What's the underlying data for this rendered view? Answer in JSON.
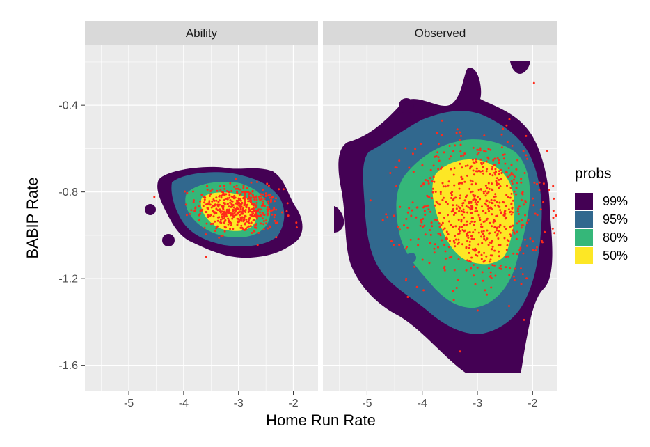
{
  "chart_data": {
    "type": "scatter",
    "subtype": "density-contour-with-points",
    "xlabel": "Home Run Rate",
    "ylabel": "BABIP Rate",
    "xlim": [
      -5.8,
      -1.55
    ],
    "ylim": [
      -1.72,
      -0.12
    ],
    "x_ticks": [
      -5,
      -4,
      -3,
      -2
    ],
    "y_ticks": [
      -0.4,
      -0.8,
      -1.2,
      -1.6
    ],
    "tick_labels": {
      "x": [
        "-5",
        "-4",
        "-3",
        "-2"
      ],
      "y": [
        "-0.4",
        "-0.8",
        "-1.2",
        "-1.6"
      ]
    },
    "grid": true,
    "legend": {
      "title": "probs",
      "position": "right",
      "entries": [
        {
          "label": "99%",
          "color": "#440154"
        },
        {
          "label": "95%",
          "color": "#31688E"
        },
        {
          "label": "80%",
          "color": "#35B779"
        },
        {
          "label": "50%",
          "color": "#FDE725"
        }
      ]
    },
    "point_color": "#FF2A1A",
    "panel_background": "#EBEBEB",
    "strip_background": "#D9D9D9",
    "panels": [
      {
        "label": "Ability",
        "points_approx_count": 500,
        "center": {
          "x": -3.0,
          "y": -0.88
        },
        "regions": [
          {
            "level": "99%",
            "x_range": [
              -4.45,
              -1.75
            ],
            "y_range": [
              -1.05,
              -0.69
            ]
          },
          {
            "level": "95%",
            "x_range": [
              -4.25,
              -2.0
            ],
            "y_range": [
              -1.0,
              -0.73
            ]
          },
          {
            "level": "80%",
            "x_range": [
              -3.8,
              -2.3
            ],
            "y_range": [
              -0.96,
              -0.76
            ]
          },
          {
            "level": "50%",
            "x_range": [
              -3.45,
              -2.55
            ],
            "y_range": [
              -0.94,
              -0.8
            ]
          }
        ]
      },
      {
        "label": "Observed",
        "points_approx_count": 700,
        "center": {
          "x": -3.0,
          "y": -0.88
        },
        "regions": [
          {
            "level": "99%",
            "x_range": [
              -5.55,
              -1.6
            ],
            "y_range": [
              -1.63,
              -0.35
            ]
          },
          {
            "level": "95%",
            "x_range": [
              -5.3,
              -1.8
            ],
            "y_range": [
              -1.4,
              -0.5
            ]
          },
          {
            "level": "80%",
            "x_range": [
              -4.6,
              -2.1
            ],
            "y_range": [
              -1.25,
              -0.63
            ]
          },
          {
            "level": "50%",
            "x_range": [
              -3.75,
              -2.5
            ],
            "y_range": [
              -1.09,
              -0.7
            ]
          }
        ]
      }
    ]
  }
}
